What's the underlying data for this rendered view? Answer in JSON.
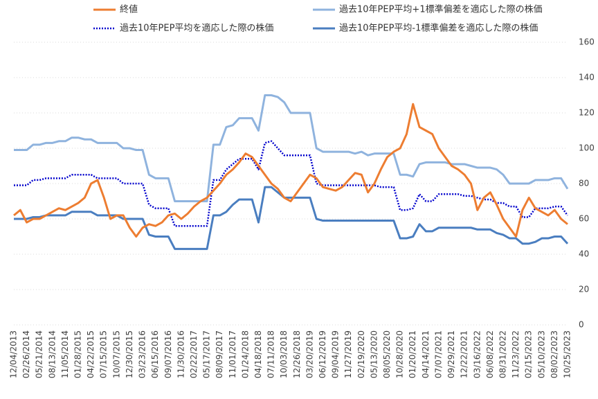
{
  "chart_data": {
    "type": "line",
    "categories": [
      "12/04/2013",
      null,
      "02/26/2014",
      null,
      "05/21/2014",
      null,
      "08/13/2014",
      null,
      "11/05/2014",
      null,
      "01/28/2015",
      null,
      "04/22/2015",
      null,
      "07/15/2015",
      null,
      "10/07/2015",
      null,
      "12/30/2015",
      null,
      "03/23/2016",
      null,
      "06/15/2016",
      null,
      "09/07/2016",
      null,
      "11/30/2016",
      null,
      "02/22/2017",
      null,
      "05/17/2017",
      null,
      "08/09/2017",
      null,
      "11/01/2017",
      null,
      "01/24/2018",
      null,
      "04/18/2018",
      null,
      "07/11/2018",
      null,
      "10/03/2018",
      null,
      "12/26/2018",
      null,
      "03/20/2019",
      null,
      "06/12/2019",
      null,
      "09/04/2019",
      null,
      "11/27/2019",
      null,
      "02/19/2020",
      null,
      "05/13/2020",
      null,
      "08/05/2020",
      null,
      "10/28/2020",
      null,
      "01/20/2021",
      null,
      "04/14/2021",
      null,
      "07/07/2021",
      null,
      "09/29/2021",
      null,
      "12/22/2021",
      null,
      "03/16/2022",
      null,
      "06/08/2022",
      null,
      "08/31/2022",
      null,
      "11/23/2022",
      null,
      "02/15/2023",
      null,
      "05/10/2023",
      null,
      "08/02/2023",
      null,
      "10/25/2023"
    ],
    "series": [
      {
        "name": "終値",
        "color": "#ED7D31",
        "width": 3,
        "style": "solid",
        "values": [
          62,
          65,
          58,
          60,
          60,
          62,
          64,
          66,
          65,
          67,
          69,
          72,
          80,
          82,
          72,
          60,
          62,
          62,
          55,
          50,
          55,
          57,
          56,
          58,
          62,
          63,
          60,
          63,
          67,
          70,
          72,
          76,
          80,
          85,
          88,
          92,
          97,
          95,
          90,
          85,
          80,
          77,
          72,
          70,
          75,
          80,
          85,
          83,
          78,
          77,
          76,
          78,
          82,
          86,
          85,
          75,
          80,
          88,
          95,
          98,
          100,
          108,
          125,
          112,
          110,
          108,
          100,
          95,
          90,
          88,
          85,
          80,
          65,
          72,
          75,
          68,
          60,
          55,
          50,
          65,
          72,
          66,
          64,
          62,
          65,
          60,
          57
        ]
      },
      {
        "name": "過去10年PEP平均+1標準偏差を適応した際の株価",
        "color": "#8FB3DE",
        "width": 3,
        "style": "solid",
        "values": [
          99,
          99,
          99,
          102,
          102,
          103,
          103,
          104,
          104,
          106,
          106,
          105,
          105,
          103,
          103,
          103,
          103,
          100,
          100,
          99,
          99,
          85,
          83,
          83,
          83,
          70,
          70,
          70,
          70,
          70,
          70,
          102,
          102,
          112,
          113,
          117,
          117,
          117,
          110,
          130,
          130,
          129,
          126,
          120,
          120,
          120,
          120,
          100,
          98,
          98,
          98,
          98,
          98,
          97,
          98,
          96,
          97,
          97,
          97,
          97,
          85,
          85,
          84,
          91,
          92,
          92,
          92,
          92,
          91,
          91,
          91,
          90,
          89,
          89,
          89,
          88,
          85,
          80,
          80,
          80,
          80,
          82,
          82,
          82,
          83,
          83,
          77
        ]
      },
      {
        "name": "過去10年PEP平均を適応した際の株価",
        "color": "#0000CC",
        "width": 2.5,
        "style": "dotted",
        "values": [
          79,
          79,
          79,
          82,
          82,
          83,
          83,
          83,
          83,
          85,
          85,
          85,
          85,
          83,
          83,
          83,
          83,
          80,
          80,
          80,
          80,
          68,
          66,
          66,
          66,
          56,
          56,
          56,
          56,
          56,
          56,
          82,
          82,
          88,
          91,
          94,
          94,
          94,
          88,
          103,
          104,
          100,
          96,
          96,
          96,
          96,
          96,
          80,
          79,
          79,
          79,
          79,
          79,
          79,
          79,
          79,
          79,
          78,
          78,
          78,
          65,
          65,
          66,
          74,
          70,
          70,
          74,
          74,
          74,
          74,
          73,
          73,
          72,
          71,
          71,
          69,
          69,
          67,
          67,
          61,
          61,
          66,
          66,
          66,
          67,
          67,
          62
        ]
      },
      {
        "name": "過去10年PEP平均-1標準偏差を適応した際の株価",
        "color": "#4A7EC0",
        "width": 3,
        "style": "solid",
        "values": [
          60,
          60,
          60,
          61,
          61,
          62,
          62,
          62,
          62,
          64,
          64,
          64,
          64,
          62,
          62,
          62,
          62,
          60,
          60,
          60,
          60,
          51,
          50,
          50,
          50,
          43,
          43,
          43,
          43,
          43,
          43,
          62,
          62,
          64,
          68,
          71,
          71,
          71,
          58,
          78,
          78,
          75,
          72,
          72,
          72,
          72,
          72,
          60,
          59,
          59,
          59,
          59,
          59,
          59,
          59,
          59,
          59,
          59,
          59,
          59,
          49,
          49,
          50,
          57,
          53,
          53,
          55,
          55,
          55,
          55,
          55,
          55,
          54,
          54,
          54,
          52,
          51,
          49,
          49,
          46,
          46,
          47,
          49,
          49,
          50,
          50,
          46
        ]
      }
    ],
    "ylim": [
      0,
      160
    ],
    "yticks": [
      0,
      20,
      40,
      60,
      80,
      100,
      120,
      140,
      160
    ],
    "grid": true,
    "y_axis_side": "right",
    "legend": "top"
  }
}
